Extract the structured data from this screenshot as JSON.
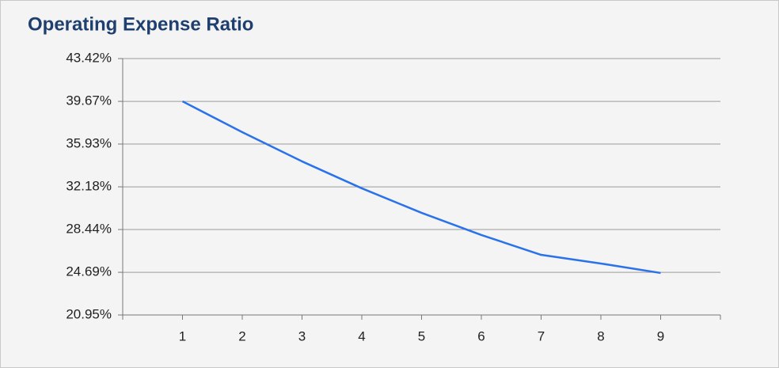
{
  "chart_data": {
    "type": "line",
    "title": "Operating Expense Ratio",
    "x": [
      1,
      2,
      3,
      4,
      5,
      6,
      7,
      8,
      9
    ],
    "series": [
      {
        "color": "#2a72ea",
        "values": [
          39.67,
          36.97,
          34.41,
          32.05,
          29.9,
          27.96,
          26.22,
          25.46,
          24.63
        ]
      }
    ],
    "xlim": [
      0,
      10
    ],
    "xticks": [
      1,
      2,
      3,
      4,
      5,
      6,
      7,
      8,
      9
    ],
    "ylim": [
      20.95,
      43.42
    ],
    "yticks": [
      {
        "value": 20.95,
        "label": "20.95%"
      },
      {
        "value": 24.69,
        "label": "24.69%"
      },
      {
        "value": 28.44,
        "label": "28.44%"
      },
      {
        "value": 32.18,
        "label": "32.18%"
      },
      {
        "value": 35.93,
        "label": "35.93%"
      },
      {
        "value": 39.67,
        "label": "39.67%"
      },
      {
        "value": 43.42,
        "label": "43.42%"
      }
    ],
    "grid": true
  }
}
